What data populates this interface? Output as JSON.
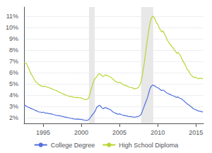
{
  "chart_data": {
    "type": "line",
    "x": [
      1992.5,
      1992.67,
      1992.83,
      1993.0,
      1993.17,
      1993.33,
      1993.5,
      1993.67,
      1993.83,
      1994.0,
      1994.17,
      1994.33,
      1994.5,
      1994.67,
      1994.83,
      1995.0,
      1995.17,
      1995.33,
      1995.5,
      1995.67,
      1995.83,
      1996.0,
      1996.17,
      1996.33,
      1996.5,
      1996.67,
      1996.83,
      1997.0,
      1997.17,
      1997.33,
      1997.5,
      1997.67,
      1997.83,
      1998.0,
      1998.17,
      1998.33,
      1998.5,
      1998.67,
      1998.83,
      1999.0,
      1999.17,
      1999.33,
      1999.5,
      1999.67,
      1999.83,
      2000.0,
      2000.17,
      2000.33,
      2000.5,
      2000.67,
      2000.83,
      2001.0,
      2001.17,
      2001.33,
      2001.5,
      2001.67,
      2001.83,
      2002.0,
      2002.17,
      2002.33,
      2002.5,
      2002.67,
      2002.83,
      2003.0,
      2003.17,
      2003.33,
      2003.5,
      2003.67,
      2003.83,
      2004.0,
      2004.17,
      2004.33,
      2004.5,
      2004.67,
      2004.83,
      2005.0,
      2005.17,
      2005.33,
      2005.5,
      2005.67,
      2005.83,
      2006.0,
      2006.17,
      2006.33,
      2006.5,
      2006.67,
      2006.83,
      2007.0,
      2007.17,
      2007.33,
      2007.5,
      2007.67,
      2007.83,
      2008.0,
      2008.17,
      2008.33,
      2008.5,
      2008.67,
      2008.83,
      2009.0,
      2009.17,
      2009.33,
      2009.5,
      2009.67,
      2009.83,
      2010.0,
      2010.17,
      2010.33,
      2010.5,
      2010.67,
      2010.83,
      2011.0,
      2011.17,
      2011.33,
      2011.5,
      2011.67,
      2011.83,
      2012.0,
      2012.17,
      2012.33,
      2012.5,
      2012.67,
      2012.83,
      2013.0,
      2013.17,
      2013.33,
      2013.5,
      2013.67,
      2013.83,
      2014.0,
      2014.17,
      2014.33,
      2014.5,
      2014.67,
      2014.83,
      2015.0,
      2015.17,
      2015.33,
      2015.5,
      2015.67,
      2015.83,
      2015.92
    ],
    "series": [
      {
        "name": "College Degree",
        "values": [
          3.05,
          3.1,
          3.0,
          2.95,
          2.9,
          2.85,
          2.8,
          2.75,
          2.7,
          2.65,
          2.6,
          2.55,
          2.5,
          2.5,
          2.45,
          2.5,
          2.45,
          2.4,
          2.42,
          2.38,
          2.35,
          2.35,
          2.32,
          2.28,
          2.25,
          2.22,
          2.2,
          2.2,
          2.18,
          2.15,
          2.12,
          2.1,
          2.05,
          2.05,
          2.02,
          2.0,
          1.98,
          1.95,
          1.93,
          1.9,
          1.88,
          1.87,
          1.88,
          1.87,
          1.85,
          1.85,
          1.82,
          1.8,
          1.78,
          1.77,
          1.78,
          1.85,
          2.0,
          2.15,
          2.3,
          2.45,
          2.6,
          2.9,
          3.0,
          3.1,
          3.05,
          2.9,
          2.8,
          2.85,
          2.9,
          2.85,
          2.8,
          2.75,
          2.7,
          2.6,
          2.5,
          2.45,
          2.4,
          2.35,
          2.3,
          2.35,
          2.3,
          2.25,
          2.22,
          2.2,
          2.18,
          2.15,
          2.12,
          2.1,
          2.1,
          2.08,
          2.05,
          2.05,
          2.07,
          2.1,
          2.12,
          2.2,
          2.3,
          2.6,
          2.9,
          3.2,
          3.5,
          3.8,
          4.2,
          4.6,
          4.8,
          4.9,
          4.85,
          4.8,
          4.7,
          4.65,
          4.6,
          4.5,
          4.4,
          4.45,
          4.4,
          4.3,
          4.2,
          4.15,
          4.1,
          4.05,
          4.0,
          3.95,
          3.9,
          3.85,
          3.8,
          3.85,
          3.75,
          3.7,
          3.65,
          3.55,
          3.45,
          3.35,
          3.25,
          3.15,
          3.1,
          3.0,
          2.9,
          2.8,
          2.75,
          2.7,
          2.65,
          2.6,
          2.58,
          2.55,
          2.52,
          2.5
        ]
      },
      {
        "name": "High School Diploma",
        "values": [
          6.9,
          6.85,
          6.8,
          6.5,
          6.3,
          6.0,
          5.8,
          5.6,
          5.4,
          5.2,
          5.1,
          5.0,
          4.9,
          4.85,
          4.8,
          4.75,
          4.8,
          4.75,
          4.72,
          4.7,
          4.65,
          4.6,
          4.55,
          4.5,
          4.45,
          4.42,
          4.38,
          4.3,
          4.25,
          4.2,
          4.15,
          4.1,
          4.05,
          4.0,
          3.95,
          3.92,
          3.9,
          3.88,
          3.85,
          3.82,
          3.8,
          3.78,
          3.8,
          3.78,
          3.75,
          3.75,
          3.7,
          3.65,
          3.6,
          3.62,
          3.65,
          3.8,
          4.2,
          4.6,
          5.0,
          5.3,
          5.5,
          5.6,
          5.8,
          5.9,
          5.85,
          5.75,
          5.65,
          5.7,
          5.8,
          5.75,
          5.7,
          5.65,
          5.6,
          5.5,
          5.4,
          5.3,
          5.2,
          5.15,
          5.1,
          5.15,
          5.1,
          5.0,
          4.92,
          4.88,
          4.85,
          4.8,
          4.75,
          4.7,
          4.68,
          4.65,
          4.6,
          4.55,
          4.58,
          4.62,
          4.7,
          4.9,
          5.2,
          5.8,
          6.5,
          7.3,
          8.2,
          9.0,
          9.8,
          10.4,
          10.8,
          11.0,
          10.9,
          10.7,
          10.4,
          10.3,
          10.0,
          9.8,
          9.6,
          9.7,
          9.5,
          9.3,
          9.0,
          8.8,
          8.6,
          8.5,
          8.3,
          8.2,
          8.0,
          7.9,
          7.7,
          7.8,
          7.6,
          7.5,
          7.2,
          7.0,
          6.8,
          6.6,
          6.3,
          6.2,
          6.0,
          5.8,
          5.7,
          5.6,
          5.55,
          5.6,
          5.5,
          5.45,
          5.5,
          5.48,
          5.45,
          5.5
        ]
      }
    ],
    "recessions": {
      "ranges": [
        [
          2001.0,
          2001.75
        ],
        [
          2007.83,
          2009.42
        ]
      ],
      "color": "#e8e8e8"
    },
    "xlim": [
      1992.5,
      2016.0
    ],
    "xticks": [
      1995,
      2000,
      2005,
      2010,
      2015
    ],
    "ylim": [
      1.5,
      11.8
    ],
    "yticks": [
      {
        "value": 2,
        "label": "2%"
      },
      {
        "value": 3,
        "label": "3%"
      },
      {
        "value": 4,
        "label": "4%"
      },
      {
        "value": 5,
        "label": "5%"
      },
      {
        "value": 6,
        "label": "6%"
      },
      {
        "value": 7,
        "label": "7%"
      },
      {
        "value": 8,
        "label": "8%"
      },
      {
        "value": 9,
        "label": "9%"
      },
      {
        "value": 10,
        "label": "10%"
      },
      {
        "value": 11,
        "label": "11%"
      }
    ],
    "grid": true,
    "legend": "bottom"
  }
}
